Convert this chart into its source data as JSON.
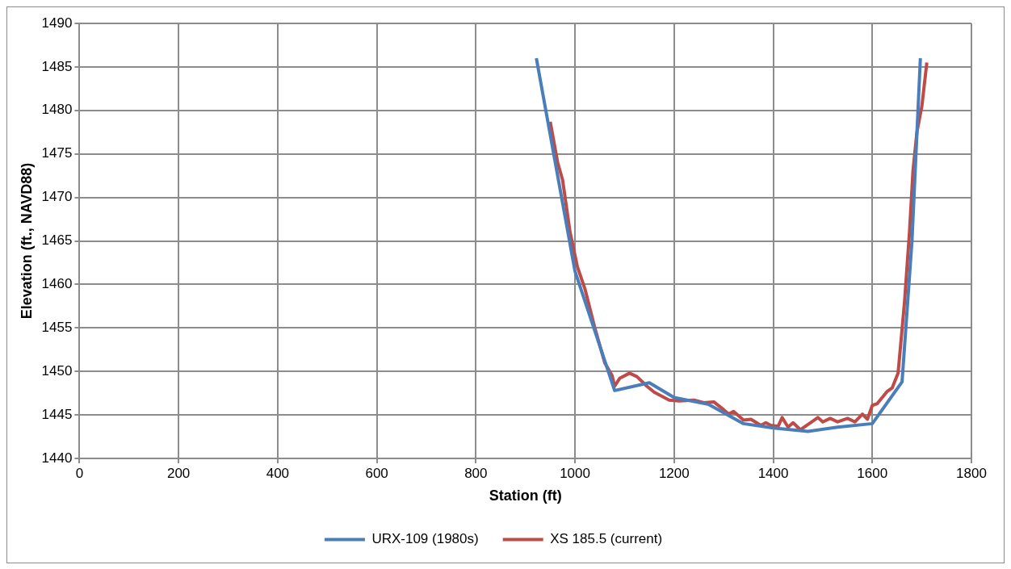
{
  "chart_data": {
    "type": "line",
    "xlabel": "Station (ft)",
    "ylabel": "Elevation (ft., NAVD88)",
    "xlim": [
      0,
      1800
    ],
    "xticks": [
      0,
      200,
      400,
      600,
      800,
      1000,
      1200,
      1400,
      1600,
      1800
    ],
    "ylim": [
      1440,
      1490
    ],
    "yticks": [
      1440,
      1445,
      1450,
      1455,
      1460,
      1465,
      1470,
      1475,
      1480,
      1485,
      1490
    ],
    "grid": true,
    "legend": "bottom",
    "marker": "none",
    "line_style": "solid",
    "series": [
      {
        "name": "URX-109 (1980s)",
        "color": "#4a7ebb",
        "x": [
          922,
          1000,
          1080,
          1150,
          1200,
          1270,
          1340,
          1400,
          1470,
          1530,
          1600,
          1660,
          1680,
          1697
        ],
        "values": [
          1486,
          1461.5,
          1447.8,
          1448.7,
          1447,
          1446.2,
          1444,
          1443.5,
          1443.1,
          1443.6,
          1444,
          1448.8,
          1465,
          1486
        ]
      },
      {
        "name": "XS 185.5 (current)",
        "color": "#be4b48",
        "x": [
          950,
          965,
          975,
          990,
          1005,
          1020,
          1040,
          1060,
          1075,
          1080,
          1090,
          1110,
          1125,
          1145,
          1160,
          1190,
          1210,
          1240,
          1260,
          1280,
          1300,
          1310,
          1320,
          1340,
          1355,
          1375,
          1385,
          1395,
          1410,
          1418,
          1430,
          1440,
          1455,
          1475,
          1490,
          1500,
          1515,
          1530,
          1550,
          1565,
          1580,
          1590,
          1600,
          1610,
          1630,
          1640,
          1652,
          1665,
          1675,
          1682,
          1690,
          1700,
          1710
        ],
        "values": [
          1478.7,
          1474,
          1472,
          1466,
          1462,
          1459.5,
          1455,
          1451,
          1449.5,
          1448.3,
          1449.2,
          1449.8,
          1449.4,
          1448.3,
          1447.6,
          1446.7,
          1446.6,
          1446.7,
          1446.4,
          1446.5,
          1445.6,
          1445.1,
          1445.4,
          1444.4,
          1444.5,
          1443.8,
          1444.1,
          1443.8,
          1443.7,
          1444.7,
          1443.6,
          1444.1,
          1443.3,
          1444.1,
          1444.7,
          1444.2,
          1444.6,
          1444.2,
          1444.6,
          1444.2,
          1445.1,
          1444.5,
          1446.1,
          1446.3,
          1447.7,
          1448.1,
          1449.8,
          1458,
          1466,
          1473,
          1477.5,
          1480.5,
          1485.5
        ]
      }
    ]
  }
}
